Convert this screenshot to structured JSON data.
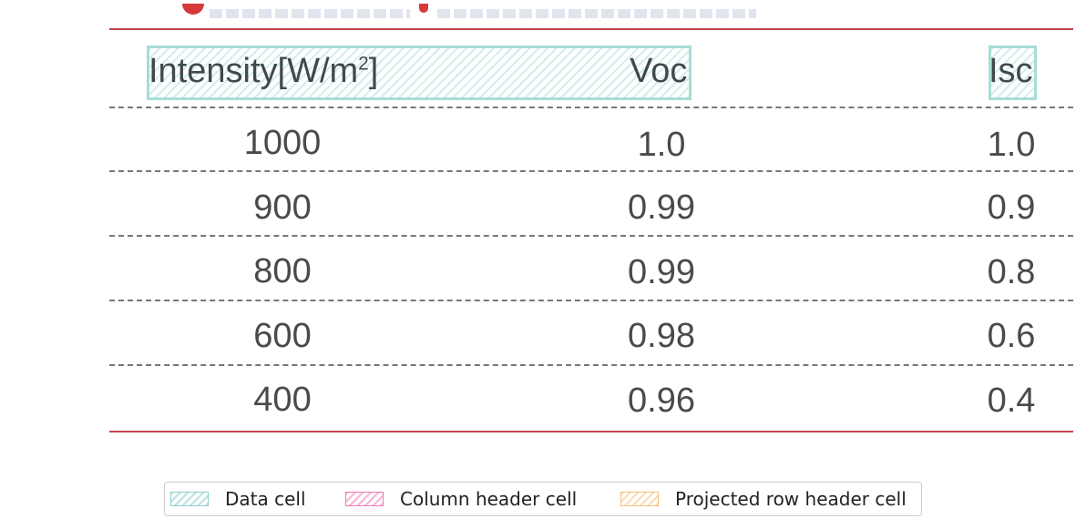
{
  "table": {
    "columns": [
      {
        "label": "Intensity[W/m",
        "sup": "2",
        "suffix": "]"
      },
      {
        "label": "Voc"
      },
      {
        "label": "Isc"
      }
    ],
    "rows": [
      [
        "1000",
        "1.0",
        "1.0"
      ],
      [
        "900",
        "0.99",
        "0.9"
      ],
      [
        "800",
        "0.99",
        "0.8"
      ],
      [
        "600",
        "0.98",
        "0.6"
      ],
      [
        "400",
        "0.96",
        "0.4"
      ]
    ]
  },
  "legend": {
    "items": [
      {
        "label": "Data cell",
        "color": "#7fcdc8"
      },
      {
        "label": "Column header cell",
        "color": "#f07ab6"
      },
      {
        "label": "Projected row header cell",
        "color": "#f5c079"
      }
    ]
  },
  "colors": {
    "rule": "#c0474a",
    "text": "#4a4a4a"
  }
}
